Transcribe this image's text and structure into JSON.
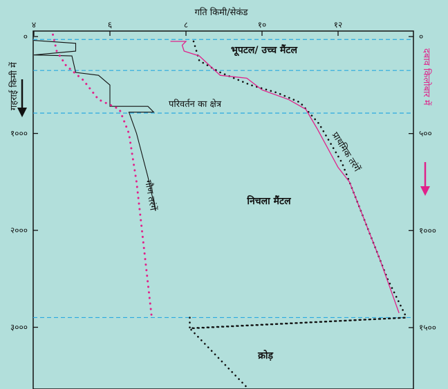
{
  "chart_data": {
    "type": "line",
    "title": "",
    "top_axis": {
      "label": "गति किमी/सेकंड",
      "ticks": [
        {
          "value": 4,
          "label": "४"
        },
        {
          "value": 6,
          "label": "६"
        },
        {
          "value": 8,
          "label": "८"
        },
        {
          "value": 10,
          "label": "१०"
        },
        {
          "value": 12,
          "label": "१२"
        }
      ]
    },
    "left_axis": {
      "label": "गहराई किमी में",
      "ticks": [
        {
          "value": 0,
          "label": "०"
        },
        {
          "value": 1000,
          "label": "१०००"
        },
        {
          "value": 2000,
          "label": "२०००"
        },
        {
          "value": 3000,
          "label": "३०००"
        }
      ]
    },
    "right_axis": {
      "label": "दबाव किलोबार में",
      "ticks": [
        {
          "value": 0,
          "label": "०"
        },
        {
          "value": 500,
          "label": "५००"
        },
        {
          "value": 1000,
          "label": "१०००"
        },
        {
          "value": 1500,
          "label": "१५००"
        }
      ]
    },
    "regions": [
      {
        "label": "भूपटल/ उच्च मैंटल"
      },
      {
        "label": "परिवर्तन का क्षेत्र"
      },
      {
        "label": "निचला मैंटल"
      },
      {
        "label": "क्रोड़"
      }
    ],
    "boundaries_km": [
      30,
      350,
      790,
      2900
    ],
    "series": [
      {
        "name": "प्राथमिक तरंगें",
        "color": "#e0218a",
        "points": [
          [
            7.6,
            50
          ],
          [
            8.0,
            50
          ],
          [
            7.9,
            90
          ],
          [
            7.95,
            150
          ],
          [
            8.35,
            200
          ],
          [
            8.9,
            400
          ],
          [
            9.6,
            430
          ],
          [
            10.0,
            550
          ],
          [
            10.7,
            650
          ],
          [
            11.15,
            750
          ],
          [
            11.45,
            950
          ],
          [
            12.0,
            1350
          ],
          [
            12.3,
            1500
          ],
          [
            12.7,
            1900
          ],
          [
            13.1,
            2300
          ],
          [
            13.6,
            2850
          ]
        ]
      },
      {
        "name": "गौण तरंगें",
        "color": "#e0218a",
        "points": [
          [
            4.5,
            -20
          ],
          [
            4.6,
            150
          ],
          [
            4.85,
            300
          ],
          [
            5.3,
            450
          ],
          [
            5.7,
            650
          ],
          [
            6.25,
            750
          ],
          [
            6.5,
            1000
          ],
          [
            6.7,
            1500
          ],
          [
            6.9,
            2200
          ],
          [
            7.1,
            2900
          ]
        ]
      }
    ],
    "model_lines": [
      {
        "color": "#111",
        "points": [
          [
            4.0,
            40
          ],
          [
            5.1,
            70
          ],
          [
            5.1,
            150
          ],
          [
            4.0,
            190
          ],
          [
            5.0,
            200
          ],
          [
            5.1,
            370
          ],
          [
            5.7,
            400
          ],
          [
            6.0,
            500
          ],
          [
            6.0,
            720
          ],
          [
            7.0,
            720
          ],
          [
            7.15,
            780
          ],
          [
            6.5,
            780
          ],
          [
            6.7,
            1000
          ],
          [
            7.0,
            1450
          ],
          [
            7.2,
            1800
          ]
        ]
      }
    ],
    "dotted_lines": [
      {
        "color": "#111",
        "points": [
          [
            8.2,
            50
          ],
          [
            8.35,
            250
          ],
          [
            8.9,
            370
          ],
          [
            9.7,
            500
          ],
          [
            10.4,
            580
          ],
          [
            11.0,
            680
          ],
          [
            11.5,
            900
          ],
          [
            12.1,
            1300
          ],
          [
            12.6,
            1800
          ],
          [
            13.3,
            2500
          ],
          [
            13.8,
            2900
          ]
        ]
      },
      {
        "color": "#111",
        "points": [
          [
            8.1,
            2900
          ],
          [
            8.1,
            3010
          ],
          [
            8.2,
            3010
          ],
          [
            13.8,
            2900
          ],
          [
            8.1,
            3010
          ],
          [
            9.8,
            3700
          ]
        ]
      }
    ],
    "xlim": [
      3.6,
      14.0
    ],
    "ylim": [
      -40,
      3710
    ]
  }
}
